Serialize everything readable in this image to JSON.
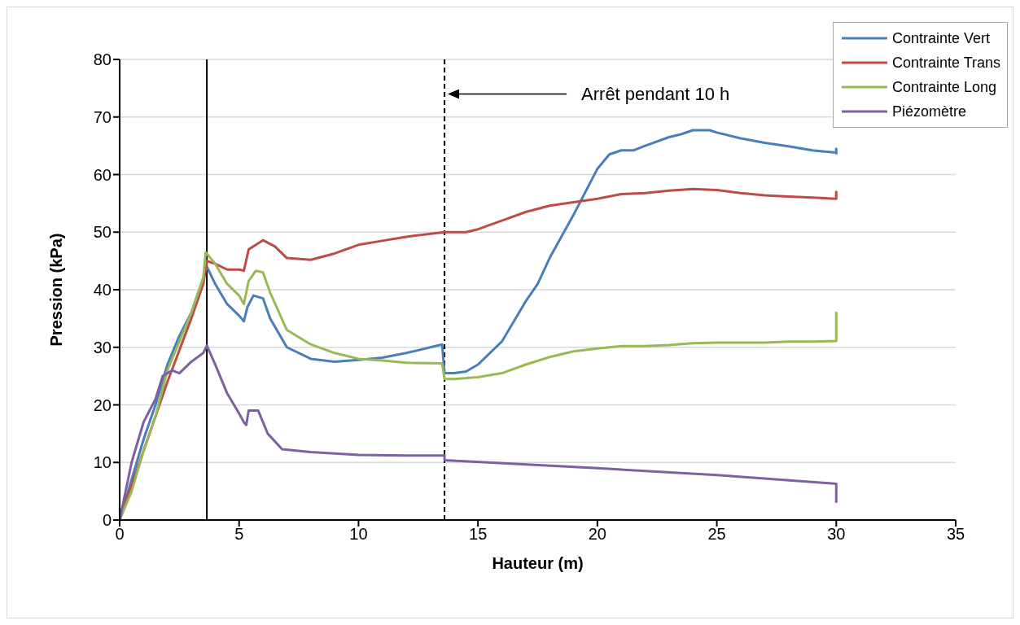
{
  "chart_data": {
    "type": "line",
    "xlabel": "Hauteur (m)",
    "ylabel": "Pression (kPa)",
    "xlim": [
      0,
      35
    ],
    "xticks": [
      0,
      5,
      10,
      15,
      20,
      25,
      30,
      35
    ],
    "ylim": [
      0,
      80
    ],
    "yticks": [
      0,
      10,
      20,
      30,
      40,
      50,
      60,
      70,
      80
    ],
    "grid": "y",
    "legend": "top right",
    "marker": "none",
    "line_style": "solid",
    "ref_lines": [
      {
        "axis": "x",
        "value": 3.65,
        "color": "#000000",
        "line_style": "solid"
      },
      {
        "axis": "x",
        "value": 13.6,
        "color": "#000000",
        "line_style": "dashed"
      }
    ],
    "annotations": [
      {
        "text": "Arrêt pendant 10 h",
        "x": 13.6,
        "y": 74
      }
    ],
    "series": [
      {
        "name": "Contrainte Vert",
        "color": "#4a7ebb",
        "x": [
          0,
          0.5,
          1,
          1.5,
          2,
          2.5,
          3,
          3.5,
          3.65,
          4,
          4.5,
          5,
          5.2,
          5.35,
          5.6,
          6,
          6.3,
          7,
          8,
          9,
          10,
          11,
          12,
          13.5,
          13.6,
          14,
          14.5,
          15,
          16,
          17,
          17.5,
          18,
          19,
          19.5,
          20,
          20.5,
          21,
          21.5,
          22,
          23,
          23.5,
          24,
          24.7,
          25,
          26,
          27,
          28,
          29,
          30,
          30,
          30
        ],
        "values": [
          0,
          7,
          14,
          20,
          27,
          32,
          36,
          42,
          44,
          41,
          37.5,
          35.5,
          34.5,
          37,
          39,
          38.5,
          35,
          30,
          28,
          27.5,
          27.8,
          28.2,
          29,
          30.5,
          25.5,
          25.5,
          25.8,
          27,
          31,
          38,
          41,
          45.5,
          53,
          57,
          61,
          63.5,
          64.2,
          64.2,
          65,
          66.5,
          67,
          67.7,
          67.7,
          67.3,
          66.3,
          65.5,
          64.9,
          64.2,
          63.8,
          64.5,
          63.5
        ]
      },
      {
        "name": "Contrainte Trans",
        "color": "#be4b48",
        "x": [
          0,
          1,
          2,
          3,
          3.5,
          3.65,
          4,
          4.5,
          5,
          5.2,
          5.4,
          6,
          6.5,
          7,
          8,
          9,
          10,
          11,
          12,
          13.6,
          14.5,
          15,
          16,
          17,
          18,
          19,
          20,
          21,
          22,
          23,
          24,
          25,
          26,
          27,
          28,
          29,
          30,
          30,
          30
        ],
        "values": [
          0,
          12,
          24,
          35,
          41,
          45,
          44.5,
          43.5,
          43.5,
          43.3,
          47,
          48.6,
          47.5,
          45.5,
          45.2,
          46.3,
          47.8,
          48.5,
          49.2,
          50,
          50,
          50.5,
          52,
          53.5,
          54.6,
          55.2,
          55.8,
          56.6,
          56.8,
          57.2,
          57.5,
          57.3,
          56.8,
          56.4,
          56.2,
          56,
          55.8,
          57,
          55.8
        ]
      },
      {
        "name": "Contrainte Long",
        "color": "#98b954",
        "x": [
          0,
          0.5,
          1,
          1.5,
          2,
          2.5,
          3,
          3.5,
          3.6,
          4,
          4.5,
          5,
          5.2,
          5.4,
          5.7,
          6,
          6.3,
          7,
          8,
          9,
          10,
          11,
          12,
          13.5,
          13.6,
          14,
          15,
          16,
          17,
          18,
          19,
          20,
          21,
          22,
          23,
          24,
          25,
          26,
          27,
          28,
          29,
          30,
          30,
          30
        ],
        "values": [
          0,
          5,
          12,
          18,
          26,
          31,
          36,
          42,
          46.5,
          44.5,
          41,
          39,
          37.5,
          41.5,
          43.3,
          43,
          39.5,
          33,
          30.5,
          29,
          28,
          27.7,
          27.3,
          27.2,
          24.5,
          24.5,
          24.8,
          25.5,
          27,
          28.3,
          29.3,
          29.8,
          30.2,
          30.2,
          30.4,
          30.7,
          30.8,
          30.8,
          30.8,
          31,
          31,
          31.1,
          36,
          31
        ]
      },
      {
        "name": "Piézomètre",
        "color": "#7d60a0",
        "x": [
          0,
          0.5,
          1,
          1.5,
          1.8,
          2.2,
          2.5,
          3,
          3.5,
          3.65,
          4,
          4.5,
          5,
          5.2,
          5.3,
          5.4,
          5.8,
          6.2,
          6.8,
          8,
          10,
          12,
          13.6,
          13.6,
          20,
          25,
          30,
          30
        ],
        "values": [
          0,
          10,
          17,
          21,
          25,
          26,
          25.5,
          27.5,
          29,
          30.3,
          27,
          22,
          18.5,
          17,
          16.5,
          19,
          19,
          15,
          12.3,
          11.8,
          11.3,
          11.2,
          11.2,
          10.4,
          9,
          7.8,
          6.3,
          3
        ]
      }
    ]
  }
}
